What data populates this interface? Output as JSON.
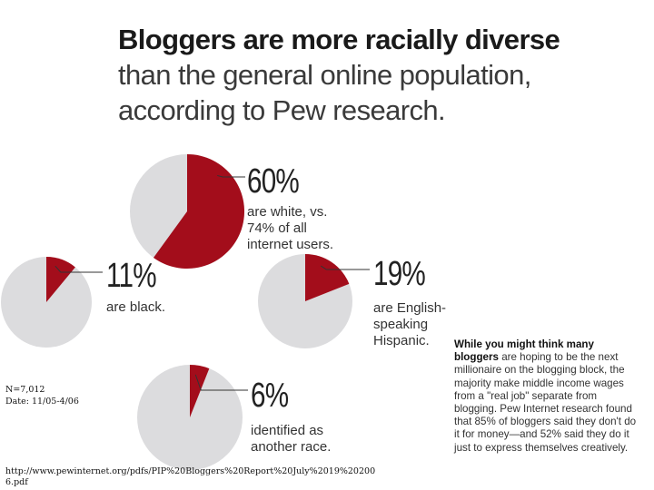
{
  "title": {
    "strong": "Bloggers are more racially diverse",
    "rest_line1": "than the general online population,",
    "rest_line2": "according to Pew research."
  },
  "chart_data": {
    "type": "pie",
    "pies": [
      {
        "label": "60%",
        "value": 60,
        "line1": "are white, vs.",
        "line2": "74% of all",
        "line3": "internet users."
      },
      {
        "label": "11%",
        "value": 11,
        "line1": "are black."
      },
      {
        "label": "19%",
        "value": 19,
        "line1": "are English-",
        "line2": "speaking",
        "line3": "Hispanic."
      },
      {
        "label": "6%",
        "value": 6,
        "line1": "identified as",
        "line2": "another race."
      }
    ]
  },
  "colors": {
    "highlight": "#a30d1b",
    "remainder": "#dcdcde",
    "leader": "#333333"
  },
  "notes": {
    "sample": "N=7,012",
    "date": "Date: 11/05-4/06",
    "url_line1": "http://www.pewinternet.org/pdfs/PIP%20Bloggers%20Report%20July%2019%20200",
    "url_line2": "6.pdf"
  },
  "callout": {
    "bold_1": "While you might think many",
    "bold_2": "bloggers",
    "text": " are hoping to be the next millionaire on the blogging block, the majority make middle income wages from a \"real job\" separate from blogging. Pew Internet research found that 85% of bloggers said they don't do it for money—and 52% said they do it just to express themselves creatively."
  }
}
